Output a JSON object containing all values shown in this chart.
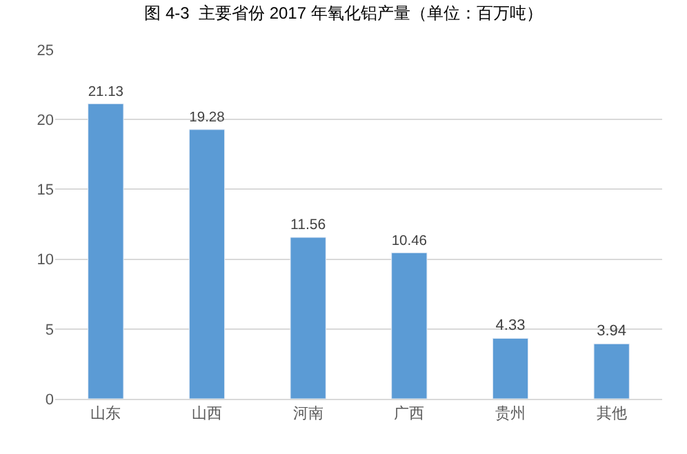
{
  "chart_data": {
    "type": "bar",
    "title": "图 4-3  主要省份 2017 年氧化铝产量（单位：百万吨）",
    "categories": [
      "山东",
      "山西",
      "河南",
      "广西",
      "贵州",
      "其他"
    ],
    "values": [
      21.13,
      19.28,
      11.56,
      10.46,
      4.33,
      3.94
    ],
    "color": "#5b9bd5",
    "ylim": [
      0,
      25
    ],
    "yticks": [
      0,
      5,
      10,
      15,
      20,
      25
    ],
    "grid": "y",
    "data_labels": true,
    "legend": false
  }
}
